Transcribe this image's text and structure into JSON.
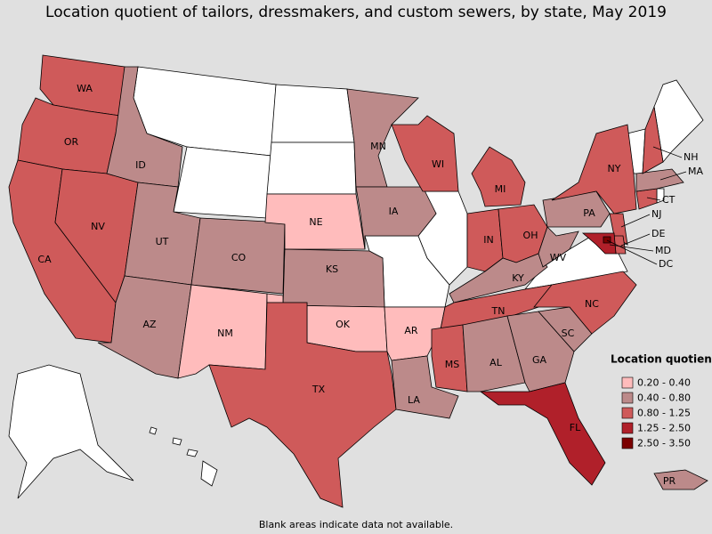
{
  "title": "Location quotient of tailors, dressmakers, and custom sewers, by state, May 2019",
  "legend": {
    "title": "Location quotient",
    "bins": [
      {
        "label": "0.20 - 0.40",
        "color": "#ffbcbc"
      },
      {
        "label": "0.40 - 0.80",
        "color": "#bc8a8a"
      },
      {
        "label": "0.80 - 1.25",
        "color": "#cf5a5a"
      },
      {
        "label": "1.25 - 2.50",
        "color": "#b0202a"
      },
      {
        "label": "2.50 - 3.50",
        "color": "#7b0000"
      }
    ]
  },
  "states": [
    {
      "name": "WA",
      "color": "#cf5a5a"
    },
    {
      "name": "OR",
      "color": "#cf5a5a"
    },
    {
      "name": "CA",
      "color": "#cf5a5a"
    },
    {
      "name": "NV",
      "color": "#cf5a5a"
    },
    {
      "name": "ID",
      "color": "#bc8a8a"
    },
    {
      "name": "UT",
      "color": "#bc8a8a"
    },
    {
      "name": "AZ",
      "color": "#bc8a8a"
    },
    {
      "name": "CO",
      "color": "#bc8a8a"
    },
    {
      "name": "NM",
      "color": "#ffbcbc"
    },
    {
      "name": "NE",
      "color": "#ffbcbc"
    },
    {
      "name": "KS",
      "color": "#bc8a8a"
    },
    {
      "name": "OK",
      "color": "#ffbcbc"
    },
    {
      "name": "TX",
      "color": "#cf5a5a"
    },
    {
      "name": "MN",
      "color": "#bc8a8a"
    },
    {
      "name": "IA",
      "color": "#bc8a8a"
    },
    {
      "name": "AR",
      "color": "#ffbcbc"
    },
    {
      "name": "LA",
      "color": "#bc8a8a"
    },
    {
      "name": "WI",
      "color": "#cf5a5a"
    },
    {
      "name": "MI",
      "color": "#cf5a5a"
    },
    {
      "name": "IN",
      "color": "#cf5a5a"
    },
    {
      "name": "OH",
      "color": "#cf5a5a"
    },
    {
      "name": "KY",
      "color": "#bc8a8a"
    },
    {
      "name": "TN",
      "color": "#cf5a5a"
    },
    {
      "name": "MS",
      "color": "#cf5a5a"
    },
    {
      "name": "AL",
      "color": "#bc8a8a"
    },
    {
      "name": "GA",
      "color": "#bc8a8a"
    },
    {
      "name": "FL",
      "color": "#b0202a"
    },
    {
      "name": "SC",
      "color": "#bc8a8a"
    },
    {
      "name": "NC",
      "color": "#cf5a5a"
    },
    {
      "name": "WV",
      "color": "#bc8a8a"
    },
    {
      "name": "PA",
      "color": "#bc8a8a"
    },
    {
      "name": "NY",
      "color": "#cf5a5a"
    },
    {
      "name": "NJ",
      "color": "#cf5a5a"
    },
    {
      "name": "DE",
      "color": "#cf5a5a"
    },
    {
      "name": "MD",
      "color": "#b0202a"
    },
    {
      "name": "DC",
      "color": "#7b0000"
    },
    {
      "name": "CT",
      "color": "#cf5a5a"
    },
    {
      "name": "MA",
      "color": "#bc8a8a"
    },
    {
      "name": "NH",
      "color": "#cf5a5a"
    },
    {
      "name": "PR",
      "color": "#bc8a8a"
    }
  ],
  "footnote": "Blank areas indicate data not available."
}
